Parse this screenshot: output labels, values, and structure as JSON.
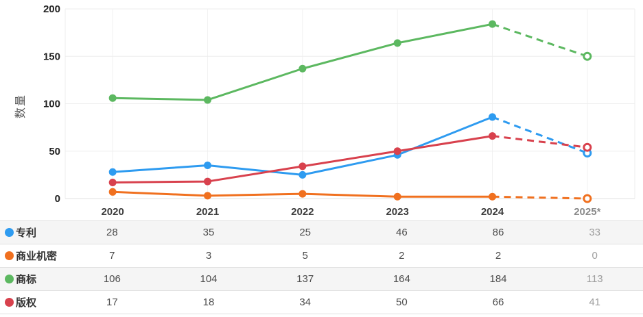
{
  "chart_data": {
    "type": "line",
    "categories": [
      "2020",
      "2021",
      "2022",
      "2023",
      "2024",
      "2025*"
    ],
    "ylabel": "数量",
    "ylim": [
      0,
      200
    ],
    "yticks": [
      0,
      50,
      100,
      150,
      200
    ],
    "grid": true,
    "legend_position": "table-left",
    "dashed_last_segment": true,
    "open_last_marker": true,
    "series": [
      {
        "name": "专利",
        "color": "#2E9BF0",
        "plotted_values": [
          28,
          35,
          25,
          46,
          86,
          48
        ],
        "table_values": [
          28,
          35,
          25,
          46,
          86,
          33
        ]
      },
      {
        "name": "商业机密",
        "color": "#F0701F",
        "plotted_values": [
          7,
          3,
          5,
          2,
          2,
          0
        ],
        "table_values": [
          7,
          3,
          5,
          2,
          2,
          0
        ]
      },
      {
        "name": "商标",
        "color": "#5CB860",
        "plotted_values": [
          106,
          104,
          137,
          164,
          184,
          150
        ],
        "table_values": [
          106,
          104,
          137,
          164,
          184,
          113
        ]
      },
      {
        "name": "版权",
        "color": "#D8414D",
        "plotted_values": [
          17,
          18,
          34,
          50,
          66,
          54
        ],
        "table_values": [
          17,
          18,
          34,
          50,
          66,
          41
        ]
      }
    ]
  },
  "table": {
    "rows": [
      {
        "label": "专利",
        "color": "#2E9BF0",
        "values": [
          28,
          35,
          25,
          46,
          86,
          33
        ]
      },
      {
        "label": "商业机密",
        "color": "#F0701F",
        "values": [
          7,
          3,
          5,
          2,
          2,
          0
        ]
      },
      {
        "label": "商标",
        "color": "#5CB860",
        "values": [
          106,
          104,
          137,
          164,
          184,
          113
        ]
      },
      {
        "label": "版权",
        "color": "#D8414D",
        "values": [
          17,
          18,
          34,
          50,
          66,
          41
        ]
      }
    ]
  },
  "colors": {
    "grid_line": "#ededed",
    "zero_line": "#e2e2e2",
    "column_line": "#f2f2f2",
    "table_border": "#e0e0e0",
    "alt_row_bg": "#f5f5f5",
    "muted_text": "#9e9e9e"
  }
}
